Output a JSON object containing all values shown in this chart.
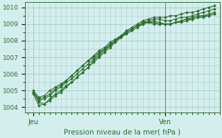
{
  "title": "Pression niveau de la mer( hPa )",
  "bg_color": "#d4eeee",
  "grid_color": "#aacccc",
  "line_color": "#2d6e2d",
  "vline_color": "#808080",
  "ylim": [
    1003.7,
    1010.3
  ],
  "xlim": [
    -1,
    70
  ],
  "yticks": [
    1004,
    1005,
    1006,
    1007,
    1008,
    1009,
    1010
  ],
  "x_tick_positions": [
    2,
    50
  ],
  "x_tick_labels": [
    "Jeu",
    "Ven"
  ],
  "vline_x": 50,
  "series": [
    {
      "x": [
        2,
        4,
        6,
        8,
        10,
        12,
        14,
        16,
        18,
        20,
        22,
        24,
        26,
        28,
        30,
        32,
        34,
        36,
        38,
        40,
        42,
        44,
        46,
        48,
        50,
        52,
        54,
        56,
        58,
        60,
        62,
        64,
        66,
        68
      ],
      "y": [
        1004.9,
        1004.3,
        1004.2,
        1004.5,
        1004.8,
        1005.0,
        1005.3,
        1005.5,
        1005.8,
        1006.1,
        1006.4,
        1006.8,
        1007.1,
        1007.4,
        1007.7,
        1008.0,
        1008.3,
        1008.6,
        1008.8,
        1009.0,
        1009.2,
        1009.3,
        1009.4,
        1009.4,
        1009.4,
        1009.5,
        1009.5,
        1009.6,
        1009.7,
        1009.7,
        1009.8,
        1009.9,
        1010.0,
        1010.1
      ]
    },
    {
      "x": [
        2,
        4,
        6,
        8,
        10,
        12,
        14,
        16,
        18,
        20,
        22,
        24,
        26,
        28,
        30,
        32,
        34,
        36,
        38,
        40,
        42,
        44,
        46,
        48,
        50,
        52,
        54,
        56,
        58,
        60,
        62,
        64,
        66,
        68
      ],
      "y": [
        1004.8,
        1004.1,
        1004.2,
        1004.4,
        1004.7,
        1004.9,
        1005.2,
        1005.5,
        1005.8,
        1006.1,
        1006.4,
        1006.7,
        1007.0,
        1007.3,
        1007.6,
        1007.9,
        1008.2,
        1008.5,
        1008.7,
        1008.9,
        1009.1,
        1009.2,
        1009.3,
        1009.3,
        1009.2,
        1009.2,
        1009.3,
        1009.4,
        1009.4,
        1009.5,
        1009.6,
        1009.7,
        1009.8,
        1009.9
      ]
    },
    {
      "x": [
        2,
        4,
        6,
        8,
        10,
        12,
        14,
        16,
        18,
        20,
        22,
        24,
        26,
        28,
        30,
        32,
        34,
        36,
        38,
        40,
        42,
        44,
        46,
        48,
        50,
        52,
        54,
        56,
        58,
        60,
        62,
        64,
        66,
        68
      ],
      "y": [
        1004.9,
        1004.4,
        1004.5,
        1004.7,
        1005.0,
        1005.2,
        1005.5,
        1005.7,
        1006.0,
        1006.3,
        1006.6,
        1006.9,
        1007.2,
        1007.5,
        1007.7,
        1008.0,
        1008.2,
        1008.5,
        1008.7,
        1008.9,
        1009.1,
        1009.1,
        1009.2,
        1009.1,
        1009.0,
        1009.0,
        1009.1,
        1009.2,
        1009.3,
        1009.4,
        1009.5,
        1009.5,
        1009.6,
        1009.7
      ]
    },
    {
      "x": [
        2,
        4,
        6,
        8,
        10,
        12,
        14,
        16,
        18,
        20,
        22,
        24,
        26,
        28,
        30,
        32,
        34,
        36,
        38,
        40,
        42,
        44,
        46,
        48,
        50,
        52,
        54,
        56,
        58,
        60,
        62,
        64,
        66,
        68
      ],
      "y": [
        1005.0,
        1004.6,
        1004.7,
        1005.0,
        1005.2,
        1005.4,
        1005.6,
        1005.9,
        1006.2,
        1006.5,
        1006.8,
        1007.0,
        1007.3,
        1007.5,
        1007.8,
        1008.0,
        1008.2,
        1008.4,
        1008.6,
        1008.8,
        1009.0,
        1009.1,
        1009.0,
        1009.0,
        1009.0,
        1009.0,
        1009.1,
        1009.1,
        1009.2,
        1009.3,
        1009.4,
        1009.4,
        1009.5,
        1009.6
      ]
    },
    {
      "x": [
        2,
        4,
        6,
        8,
        10,
        12,
        14,
        16,
        18,
        20,
        22,
        24,
        26,
        28,
        30,
        32,
        34,
        36,
        38,
        40,
        42,
        44,
        46,
        48,
        50,
        52,
        54,
        56,
        58,
        60,
        62,
        64,
        66,
        68
      ],
      "y": [
        1004.9,
        1004.5,
        1004.6,
        1004.8,
        1005.1,
        1005.3,
        1005.6,
        1005.9,
        1006.2,
        1006.5,
        1006.8,
        1007.1,
        1007.4,
        1007.6,
        1007.9,
        1008.1,
        1008.3,
        1008.5,
        1008.7,
        1008.9,
        1009.0,
        1009.1,
        1009.1,
        1009.0,
        1009.0,
        1009.0,
        1009.1,
        1009.2,
        1009.3,
        1009.3,
        1009.4,
        1009.5,
        1009.5,
        1009.6
      ]
    }
  ]
}
